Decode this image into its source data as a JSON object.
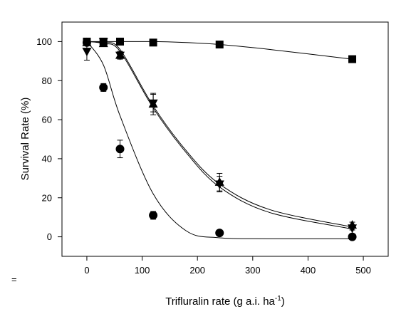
{
  "stray_mark": "=",
  "chart_data": {
    "type": "scatter",
    "title": "",
    "xlabel": "Trifluralin rate (g a.i. ha",
    "xlabel_sup": "-1",
    "xlabel_close": ")",
    "ylabel": "Survival Rate (%)",
    "xlim": [
      -45,
      545
    ],
    "ylim": [
      -10,
      110
    ],
    "xticks": [
      0,
      100,
      200,
      300,
      400,
      500
    ],
    "yticks": [
      0,
      20,
      40,
      60,
      80,
      100
    ],
    "grid": false,
    "legend": "none",
    "x": [
      0,
      30,
      60,
      120,
      240,
      480
    ],
    "series": [
      {
        "marker": "circle",
        "values": [
          99.5,
          76.5,
          45,
          11,
          2,
          0
        ],
        "errors": [
          1,
          2,
          4.5,
          2,
          0.5,
          0.5
        ],
        "fit": [
          100,
          88,
          62,
          22,
          3,
          -0.5,
          -1,
          -1
        ]
      },
      {
        "marker": "square",
        "values": [
          100,
          100,
          100,
          99.5,
          98.5,
          91
        ],
        "errors": [
          0.5,
          0.5,
          0.5,
          0.5,
          0.5,
          0.5
        ],
        "fit": [
          100,
          100,
          100,
          100,
          99.5,
          98.5,
          96,
          91
        ]
      },
      {
        "marker": "triangle-up",
        "values": [
          99.5,
          99,
          93,
          68,
          28,
          6
        ],
        "errors": [
          1,
          1.5,
          2,
          5.5,
          4.5,
          1.5
        ],
        "fit": [
          100,
          99.5,
          96,
          67,
          44,
          27,
          14,
          5
        ]
      },
      {
        "marker": "triangle-down",
        "values": [
          95,
          100,
          93,
          68.5,
          27,
          4.5
        ],
        "errors": [
          4.5,
          0.5,
          1.5,
          4.5,
          4,
          1
        ],
        "fit": [
          100,
          99,
          95,
          66,
          43,
          25.5,
          12.5,
          4
        ]
      }
    ],
    "fit_x": [
      0,
      30,
      60,
      120,
      180,
      240,
      330,
      480
    ]
  }
}
